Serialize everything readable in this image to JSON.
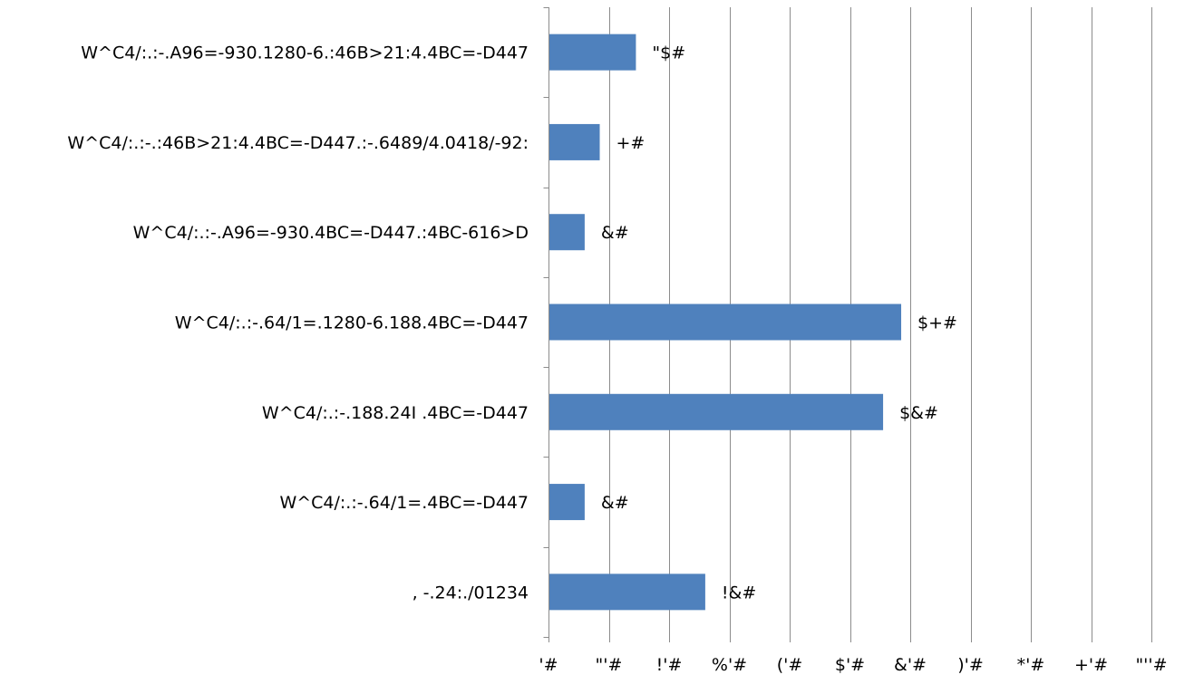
{
  "chart_data": {
    "type": "bar",
    "orientation": "horizontal",
    "categories": [
      "W^C4/:.:-.A96=-930.1280-6.:46B>21:4.4BC=-D447",
      "W^C4/:.:-.:46B>21:4.4BC=-D447.:-.6489/4.0418/-92:",
      "W^C4/:.:-.A96=-930.4BC=-D447.:4BC-616>D",
      "W^C4/:.:-.64/1=.1280-6.188.4BC=-D447",
      "W^C4/:.:-.188.24I .4BC=-D447",
      "W^C4/:.:-.64/1=.4BC=-D447",
      ", -.24:./01234"
    ],
    "values": [
      29,
      17,
      12,
      117,
      111,
      12,
      52
    ],
    "data_labels": [
      "\"$#",
      "+#",
      "&#",
      "$+#",
      "$&#",
      "&#",
      "!&#"
    ],
    "xlim": [
      0,
      200
    ],
    "x_ticks": [
      0,
      20,
      40,
      60,
      80,
      100,
      120,
      140,
      160,
      180,
      200
    ],
    "x_tick_labels": [
      "'#",
      "\"'#",
      "!'#",
      "%'#",
      "('#",
      "$'#",
      "&'#",
      ")'#",
      "*'#",
      "+'#",
      "\"''#"
    ],
    "grid": true,
    "xlabel": "",
    "ylabel": "",
    "title": "",
    "colors": {
      "bar": "#4f81bd",
      "grid": "#8c8c8c",
      "axis": "#8c8c8c"
    }
  }
}
